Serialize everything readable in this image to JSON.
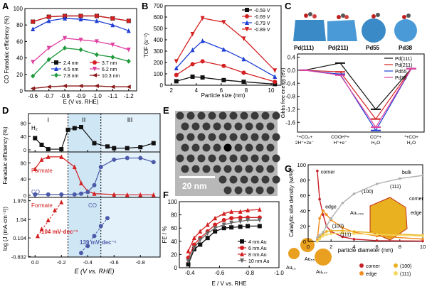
{
  "panel_labels": {
    "A": "A",
    "B": "B",
    "C": "C",
    "D": "D",
    "E": "E",
    "F": "F",
    "G": "G"
  },
  "colors": {
    "red": "#d42020",
    "blue": "#1f3fd6",
    "black": "#111111",
    "pink": "#e040a0",
    "green": "#1e9a3a",
    "darkred": "#8b1a1a",
    "bg_d": "#d9eaf7",
    "G_corner": "#c8202a",
    "G_edge": "#f28c1e",
    "G_100": "#e9b020",
    "G_111": "#f5d860",
    "G_bulk": "#b0b0b0"
  },
  "E_image": {
    "scale_label": "20 nm"
  },
  "C_images": {
    "labels": [
      "Pd(111)",
      "Pd(211)",
      "Pd55",
      "Pd38"
    ]
  },
  "G_images": {
    "cluster_labels": [
      "Au₁₃",
      "Au₅₅",
      "Au₁₄₇"
    ],
    "large_label": "Au₁₄₁₅",
    "facet_labels": [
      "(100)",
      "(111)",
      "corner",
      "edge"
    ]
  },
  "chart_data": [
    {
      "panel": "A",
      "type": "line",
      "xlabel": "E (V vs. RHE)",
      "ylabel": "CO Faradaic efficiency (%)",
      "xlim": [
        -0.55,
        -1.25
      ],
      "ylim": [
        0,
        100
      ],
      "xticks": [
        -0.6,
        -0.7,
        -0.8,
        -0.9,
        -1.0,
        -1.1,
        -1.2
      ],
      "yticks": [
        0,
        20,
        40,
        60,
        80,
        100
      ],
      "x": [
        -0.6,
        -0.7,
        -0.8,
        -0.9,
        -1.0,
        -1.1,
        -1.2
      ],
      "legend_position": "center",
      "series": [
        {
          "name": "2.4 nm",
          "color": "#111111",
          "marker": "square",
          "values": [
            84,
            90,
            91,
            91,
            91,
            88,
            85
          ]
        },
        {
          "name": "3.7 nm",
          "color": "#d42020",
          "marker": "circle",
          "values": [
            84,
            90,
            91,
            91,
            91,
            88,
            85
          ]
        },
        {
          "name": "4.5 nm",
          "color": "#1f3fd6",
          "marker": "triangle",
          "values": [
            75,
            85,
            88,
            87,
            85,
            80,
            73
          ]
        },
        {
          "name": "6.2 nm",
          "color": "#e040a0",
          "marker": "triangle-down",
          "values": [
            35,
            52,
            64,
            62,
            60,
            56,
            50
          ]
        },
        {
          "name": "7.8 nm",
          "color": "#1e9a3a",
          "marker": "diamond",
          "values": [
            18,
            38,
            52,
            50,
            44,
            41,
            36
          ]
        },
        {
          "name": "10.3 nm",
          "color": "#8b1a1a",
          "marker": "triangle-left",
          "values": [
            3,
            5,
            6,
            6,
            6,
            5,
            5
          ]
        }
      ]
    },
    {
      "panel": "B",
      "type": "line",
      "xlabel": "Particle size (nm)",
      "ylabel": "TOF (s⁻¹)",
      "xlim": [
        1.5,
        10.8
      ],
      "ylim": [
        0,
        700
      ],
      "xticks": [
        2,
        4,
        6,
        8,
        10
      ],
      "yticks": [
        0,
        100,
        200,
        300,
        400,
        500,
        600,
        700
      ],
      "x": [
        2.4,
        3.7,
        4.5,
        6.2,
        7.8,
        10.3
      ],
      "legend_position": "top-right",
      "series": [
        {
          "name": "-0.59 V",
          "color": "#111111",
          "marker": "square",
          "values": [
            35,
            75,
            68,
            45,
            30,
            10
          ]
        },
        {
          "name": "-0.69 V",
          "color": "#d42020",
          "marker": "circle",
          "values": [
            90,
            185,
            210,
            170,
            110,
            30
          ]
        },
        {
          "name": "-0.79 V",
          "color": "#1f3fd6",
          "marker": "triangle",
          "values": [
            150,
            310,
            390,
            315,
            230,
            75
          ]
        },
        {
          "name": "-0.89 V",
          "color": "#d42020",
          "marker": "triangle-down",
          "values": [
            210,
            450,
            590,
            555,
            410,
            130
          ]
        }
      ]
    },
    {
      "panel": "C",
      "type": "line",
      "ylabel": "Gibbs free energy (eV)",
      "ylim": [
        -1.9,
        0.5
      ],
      "yticks": [
        0.4,
        0.0,
        -0.4,
        -0.8,
        -1.2,
        -1.6
      ],
      "categories": [
        "*+CO₂+\n2H⁺+2e⁻",
        "COOH*+\nH⁺+e⁻",
        "CO*+\nH₂O",
        "*+CO+\nH₂O"
      ],
      "legend_position": "top-right",
      "series": [
        {
          "name": "Pd(111)",
          "color": "#111111",
          "values": [
            0,
            0.22,
            -1.2,
            0.05
          ]
        },
        {
          "name": "Pd(211)",
          "color": "#d42020",
          "values": [
            0,
            -0.05,
            -1.5,
            0.05
          ]
        },
        {
          "name": "Pd55",
          "color": "#1f3fd6",
          "values": [
            0,
            -0.12,
            -1.85,
            0.05
          ]
        },
        {
          "name": "Pd38",
          "color": "#e040a0",
          "values": [
            0,
            -0.15,
            -1.75,
            0.05
          ]
        }
      ]
    },
    {
      "panel": "D",
      "type": "line",
      "xlabel": "E (V vs. RHE)",
      "ylabel_top": "Faradaic efficiency (%)",
      "ylabel_bottom": "log (J (mA·cm⁻²))",
      "region_labels": [
        "I",
        "II",
        "III"
      ],
      "xlim": [
        0.05,
        -0.95
      ],
      "xticks": [
        0.0,
        -0.2,
        -0.4,
        -0.6,
        -0.8
      ],
      "top": {
        "ylim": [
          0,
          100
        ],
        "yticks": [
          0,
          40,
          80
        ],
        "series": [
          {
            "name": "H₂",
            "color": "#111111",
            "x": [
              0.0,
              -0.05,
              -0.1,
              -0.2,
              -0.25,
              -0.3,
              -0.35,
              -0.45,
              -0.55,
              -0.6,
              -0.7,
              -0.8,
              -0.9
            ],
            "values": [
              35,
              15,
              2,
              2,
              60,
              65,
              68,
              20,
              10,
              5,
              5,
              8,
              20
            ]
          }
        ]
      },
      "middle": {
        "ylim": [
          0,
          100
        ],
        "yticks": [
          0,
          40,
          80
        ],
        "series": [
          {
            "name": "Formate",
            "color": "#d42020",
            "x": [
              0.0,
              -0.05,
              -0.1,
              -0.2,
              -0.3,
              -0.35,
              -0.4,
              -0.45,
              -0.6,
              -0.7,
              -0.8,
              -0.9
            ],
            "values": [
              65,
              88,
              95,
              95,
              70,
              30,
              10,
              4,
              2,
              1,
              1,
              1
            ]
          },
          {
            "name": "CO",
            "color": "#4a5aa8",
            "x": [
              0.0,
              -0.1,
              -0.2,
              -0.3,
              -0.35,
              -0.4,
              -0.45,
              -0.5,
              -0.6,
              -0.7,
              -0.8,
              -0.9
            ],
            "values": [
              2,
              2,
              2,
              2,
              4,
              8,
              25,
              70,
              88,
              92,
              92,
              82
            ]
          }
        ]
      },
      "bottom": {
        "ylim": [
          -0.75,
          2.0
        ],
        "yticks": [
          1.976,
          1.04,
          0.104,
          -0.832
        ],
        "series": [
          {
            "name": "Formate",
            "color": "#d42020",
            "x": [
              -0.02,
              -0.05,
              -0.1,
              -0.15,
              -0.2
            ],
            "values": [
              0.2,
              0.55,
              1.0,
              1.5,
              1.9
            ]
          },
          {
            "name": "CO",
            "color": "#4a5aa8",
            "x": [
              -0.35,
              -0.4,
              -0.45,
              -0.5,
              -0.55
            ],
            "values": [
              -0.65,
              -0.3,
              0.2,
              0.7,
              1.1
            ]
          }
        ]
      },
      "annotations": [
        "104 mV·dec⁻¹",
        "139 mV·dec⁻¹"
      ]
    },
    {
      "panel": "F",
      "type": "line",
      "xlabel": "E / V vs. RHE",
      "ylabel": "FE / %",
      "xlim": [
        -0.33,
        -1.0
      ],
      "ylim": [
        0,
        100
      ],
      "xticks": [
        -0.4,
        -0.6,
        -0.8,
        -1.0
      ],
      "yticks": [
        0,
        20,
        40,
        60,
        80,
        100
      ],
      "legend_position": "bottom-right",
      "series": [
        {
          "name": "4 nm Au",
          "color": "#111111",
          "marker": "square",
          "x": [
            -0.39,
            -0.43,
            -0.47,
            -0.52,
            -0.57,
            -0.63,
            -0.68,
            -0.74,
            -0.79,
            -0.87
          ],
          "values": [
            5,
            28,
            35,
            45,
            55,
            60,
            61,
            62,
            63,
            63
          ]
        },
        {
          "name": "6 nm Au",
          "color": "#d42020",
          "marker": "circle",
          "x": [
            -0.39,
            -0.43,
            -0.47,
            -0.52,
            -0.57,
            -0.63,
            -0.68,
            -0.74,
            -0.79,
            -0.87
          ],
          "values": [
            15,
            35,
            45,
            55,
            65,
            72,
            75,
            76,
            76,
            76
          ]
        },
        {
          "name": "8 nm Au",
          "color": "#d42020",
          "marker": "triangle",
          "x": [
            -0.39,
            -0.43,
            -0.47,
            -0.52,
            -0.57,
            -0.63,
            -0.68,
            -0.74,
            -0.79,
            -0.87
          ],
          "values": [
            25,
            45,
            55,
            65,
            75,
            82,
            85,
            85,
            87,
            88
          ]
        },
        {
          "name": "10 nm Au",
          "color": "#666666",
          "marker": "triangle-down",
          "x": [
            -0.39,
            -0.43,
            -0.47,
            -0.52,
            -0.57,
            -0.63,
            -0.68,
            -0.74,
            -0.79,
            -0.87
          ],
          "values": [
            10,
            30,
            42,
            52,
            60,
            65,
            68,
            70,
            72,
            72
          ]
        }
      ]
    },
    {
      "panel": "G",
      "type": "line",
      "xlabel": "particle diameter (nm)",
      "ylabel": "Catalytic site density (wt%)",
      "xlim": [
        0,
        10
      ],
      "ylim": [
        0,
        100
      ],
      "xticks": [
        0,
        2,
        4,
        6,
        8,
        10
      ],
      "yticks": [
        0,
        20,
        40,
        60,
        80,
        100
      ],
      "legend_position": "bottom",
      "series": [
        {
          "name": "corner",
          "color": "#c8202a",
          "x": [
            0.8,
            1.0,
            1.3,
            1.6,
            2,
            3,
            4,
            6,
            10
          ],
          "values": [
            92,
            55,
            35,
            20,
            13,
            6,
            3,
            1,
            0.5
          ]
        },
        {
          "name": "edge",
          "color": "#f28c1e",
          "x": [
            0.8,
            1.0,
            1.3,
            1.6,
            2,
            3,
            4,
            6,
            10
          ],
          "values": [
            2,
            30,
            40,
            35,
            28,
            18,
            12,
            7,
            3
          ]
        },
        {
          "name": "(100)",
          "color": "#e9b020",
          "x": [
            0.8,
            1.0,
            1.3,
            1.6,
            2,
            3,
            4,
            6,
            10
          ],
          "values": [
            0,
            5,
            10,
            13,
            14,
            14,
            13,
            11,
            8
          ]
        },
        {
          "name": "(111)",
          "color": "#f5d860",
          "x": [
            0.8,
            1.0,
            1.3,
            1.6,
            2,
            3,
            4,
            6,
            10
          ],
          "values": [
            0,
            3,
            7,
            9,
            10,
            11,
            10,
            9,
            7
          ]
        },
        {
          "name": "bulk",
          "color": "#b0b0b0",
          "x": [
            0.8,
            1.0,
            1.3,
            1.6,
            2,
            3,
            4,
            6,
            8,
            10
          ],
          "values": [
            5,
            8,
            12,
            20,
            30,
            50,
            62,
            75,
            82,
            86
          ]
        }
      ]
    }
  ]
}
